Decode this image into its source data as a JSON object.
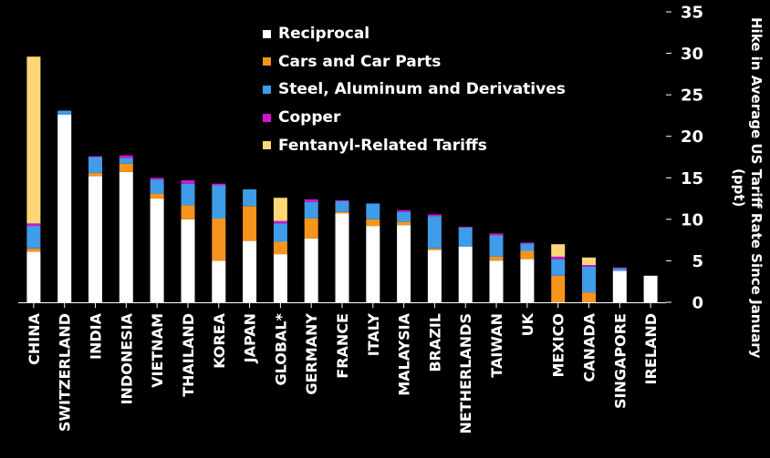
{
  "chart_data": {
    "type": "bar",
    "stacked": true,
    "categories": [
      "CHINA",
      "SWITZERLAND",
      "INDIA",
      "INDONESIA",
      "VIETNAM",
      "THAILAND",
      "KOREA",
      "JAPAN",
      "GLOBAL*",
      "GERMANY",
      "FRANCE",
      "ITALY",
      "MALAYSIA",
      "BRAZIL",
      "NETHERLANDS",
      "TAIWAN",
      "UK",
      "MEXICO",
      "CANADA",
      "SINGAPORE",
      "IRELAND"
    ],
    "series": [
      {
        "name": "Reciprocal",
        "color": "#ffffff",
        "values": [
          6.1,
          22.6,
          15.2,
          15.7,
          12.5,
          10.0,
          5.0,
          7.4,
          5.8,
          7.7,
          10.7,
          9.2,
          9.3,
          6.3,
          6.7,
          5.0,
          5.2,
          0.0,
          0.0,
          3.8,
          3.2
        ]
      },
      {
        "name": "Cars and Car Parts",
        "color": "#f7941d",
        "values": [
          0.4,
          0.0,
          0.4,
          1.0,
          0.6,
          1.7,
          5.1,
          4.2,
          1.5,
          2.4,
          0.2,
          0.8,
          0.4,
          0.2,
          0.0,
          0.5,
          1.0,
          3.2,
          1.2,
          0.0,
          0.0
        ]
      },
      {
        "name": "Steel, Aluminum and Derivatives",
        "color": "#3e9ce8",
        "values": [
          2.7,
          0.5,
          1.9,
          0.7,
          1.7,
          2.6,
          4.0,
          2.0,
          2.2,
          2.0,
          1.3,
          1.9,
          1.2,
          3.9,
          2.3,
          2.6,
          0.9,
          2.0,
          3.1,
          0.3,
          0.0
        ]
      },
      {
        "name": "Copper",
        "color": "#d214d2",
        "values": [
          0.3,
          0.0,
          0.1,
          0.3,
          0.2,
          0.4,
          0.2,
          0.0,
          0.3,
          0.3,
          0.1,
          0.0,
          0.2,
          0.2,
          0.1,
          0.2,
          0.1,
          0.3,
          0.2,
          0.1,
          0.0
        ]
      },
      {
        "name": "Fentanyl-Related Tariffs",
        "color": "#fdd777",
        "values": [
          20.1,
          0.0,
          0.0,
          0.0,
          0.0,
          0.0,
          0.0,
          0.0,
          2.8,
          0.0,
          0.0,
          0.0,
          0.0,
          0.0,
          0.0,
          0.0,
          0.0,
          1.5,
          0.9,
          0.0,
          0.0
        ]
      }
    ],
    "ylabel": "Hike in Average US Tariff Rate Since January (ppt)",
    "ylim": [
      0,
      35
    ],
    "yticks": [
      0,
      5,
      10,
      15,
      20,
      25,
      30,
      35
    ],
    "yaxis_position": "right",
    "grid": false,
    "legend_position": "top-center"
  }
}
